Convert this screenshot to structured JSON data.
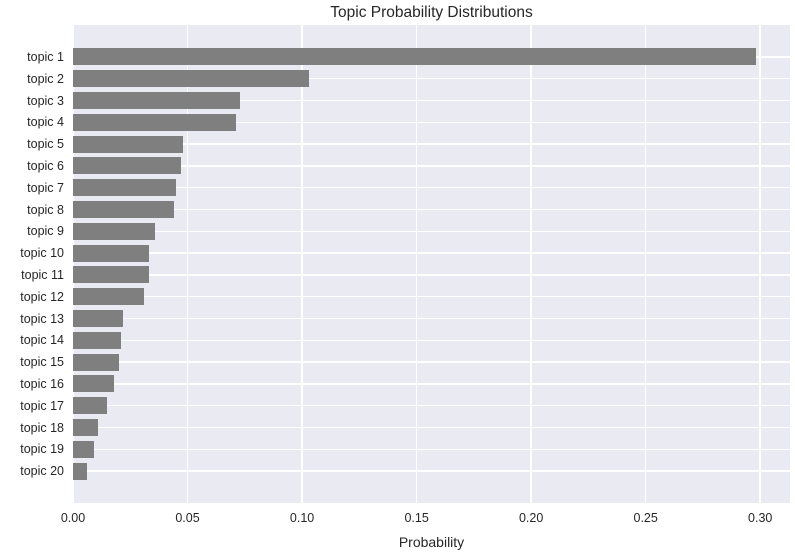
{
  "chart_data": {
    "type": "bar",
    "orientation": "horizontal",
    "title": "Topic Probability Distributions",
    "xlabel": "Probability",
    "ylabel": "",
    "categories": [
      "topic 1",
      "topic 2",
      "topic 3",
      "topic 4",
      "topic 5",
      "topic 6",
      "topic 7",
      "topic 8",
      "topic 9",
      "topic 10",
      "topic 11",
      "topic 12",
      "topic 13",
      "topic 14",
      "topic 15",
      "topic 16",
      "topic 17",
      "topic 18",
      "topic 19",
      "topic 20"
    ],
    "values": [
      0.298,
      0.103,
      0.073,
      0.071,
      0.048,
      0.047,
      0.045,
      0.044,
      0.036,
      0.033,
      0.033,
      0.031,
      0.022,
      0.021,
      0.02,
      0.018,
      0.015,
      0.011,
      0.009,
      0.006
    ],
    "xlim": [
      0,
      0.313
    ],
    "xticks": [
      0.0,
      0.05,
      0.1,
      0.15,
      0.2,
      0.25,
      0.3
    ],
    "xtick_labels": [
      "0.00",
      "0.05",
      "0.10",
      "0.15",
      "0.20",
      "0.25",
      "0.30"
    ],
    "grid": true,
    "legend": false,
    "colors": {
      "bar": "#7f7f7f",
      "plot_background": "#eaeaf2",
      "gridline": "#ffffff",
      "text": "#262626",
      "figure_background": "#ffffff"
    }
  }
}
